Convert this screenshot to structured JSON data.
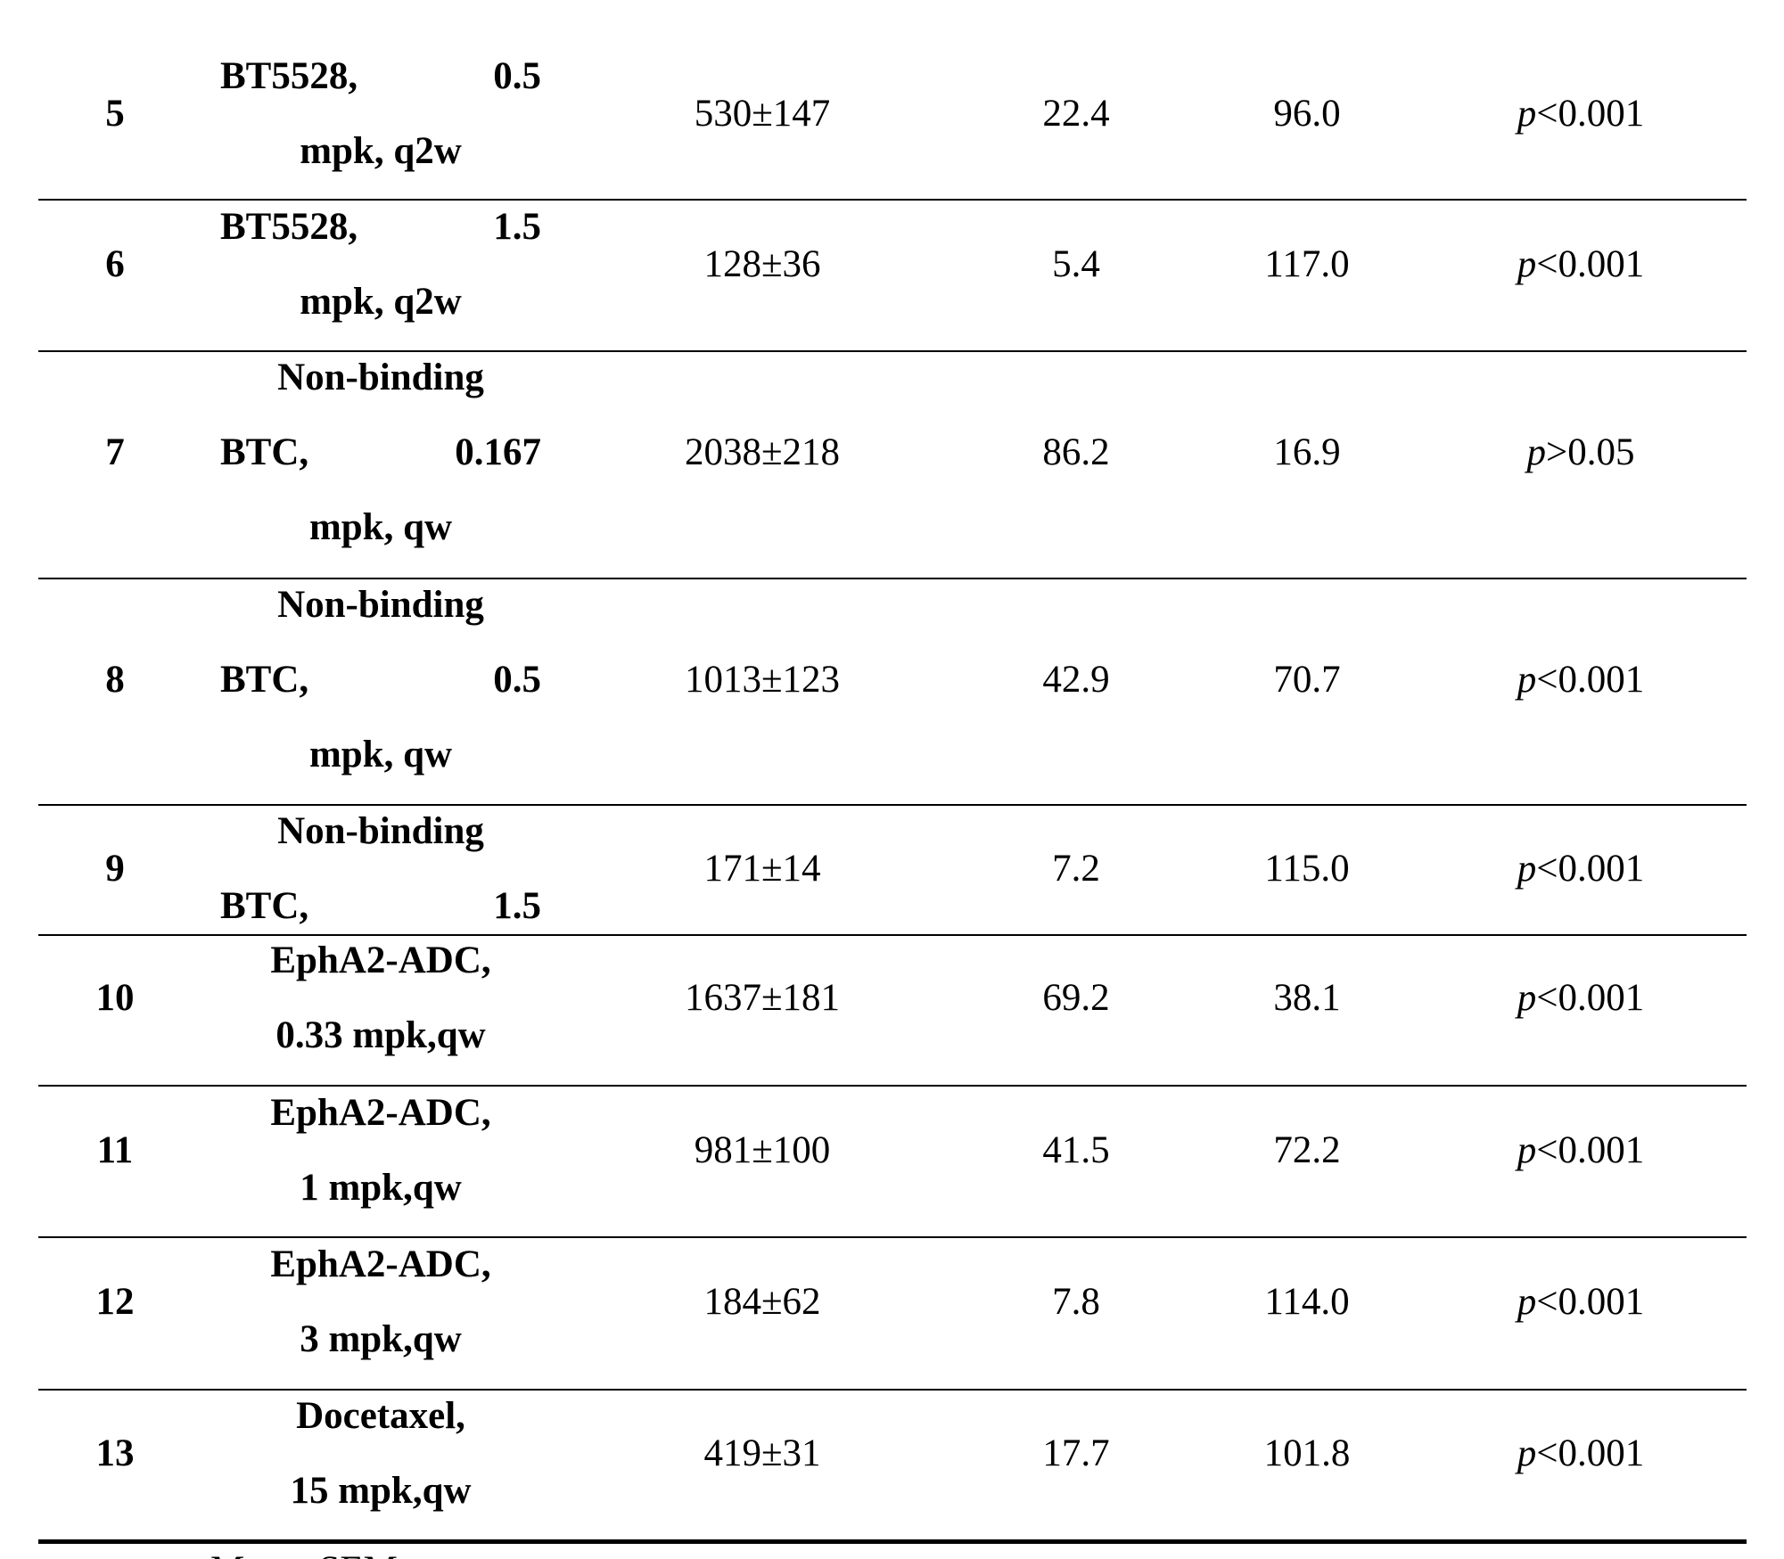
{
  "table": {
    "rows": [
      {
        "group": "5",
        "treatment": [
          "BT5528, 0.5",
          "mpk, q2w"
        ],
        "volume": "530±147",
        "ratio": "22.4",
        "tgi": "96.0",
        "p": [
          "p",
          "<0.001"
        ]
      },
      {
        "group": "6",
        "treatment": [
          "BT5528, 1.5",
          "mpk, q2w"
        ],
        "volume": "128±36",
        "ratio": "5.4",
        "tgi": "117.0",
        "p": [
          "p",
          "<0.001"
        ]
      },
      {
        "group": "7",
        "treatment": [
          "Non-binding",
          "BTC, 0.167",
          "mpk, qw"
        ],
        "volume": "2038±218",
        "ratio": "86.2",
        "tgi": "16.9",
        "p": [
          "p",
          ">0.05"
        ]
      },
      {
        "group": "8",
        "treatment": [
          "Non-binding",
          "BTC, 0.5",
          "mpk, qw"
        ],
        "volume": "1013±123",
        "ratio": "42.9",
        "tgi": "70.7",
        "p": [
          "p",
          "<0.001"
        ]
      },
      {
        "group": "9",
        "treatment": [
          "Non-binding",
          "BTC, 1.5"
        ],
        "volume": "171±14",
        "ratio": "7.2",
        "tgi": "115.0",
        "p": [
          "p",
          "<0.001"
        ]
      },
      {
        "group": "10",
        "treatment": [
          "EphA2-ADC,",
          "0.33 mpk,qw"
        ],
        "volume": "1637±181",
        "ratio": "69.2",
        "tgi": "38.1",
        "p": [
          "p",
          "<0.001"
        ]
      },
      {
        "group": "11",
        "treatment": [
          "EphA2-ADC,",
          "1 mpk,qw"
        ],
        "volume": "981±100",
        "ratio": "41.5",
        "tgi": "72.2",
        "p": [
          "p",
          "<0.001"
        ]
      },
      {
        "group": "12",
        "treatment": [
          "EphA2-ADC,",
          "3 mpk,qw"
        ],
        "volume": "184±62",
        "ratio": "7.8",
        "tgi": "114.0",
        "p": [
          "p",
          "<0.001"
        ]
      },
      {
        "group": "13",
        "treatment": [
          "Docetaxel,",
          "15 mpk,qw"
        ],
        "volume": "419±31",
        "ratio": "17.7",
        "tgi": "101.8",
        "p": [
          "p",
          "<0.001"
        ]
      }
    ],
    "footnote": "Mean±SEM"
  }
}
